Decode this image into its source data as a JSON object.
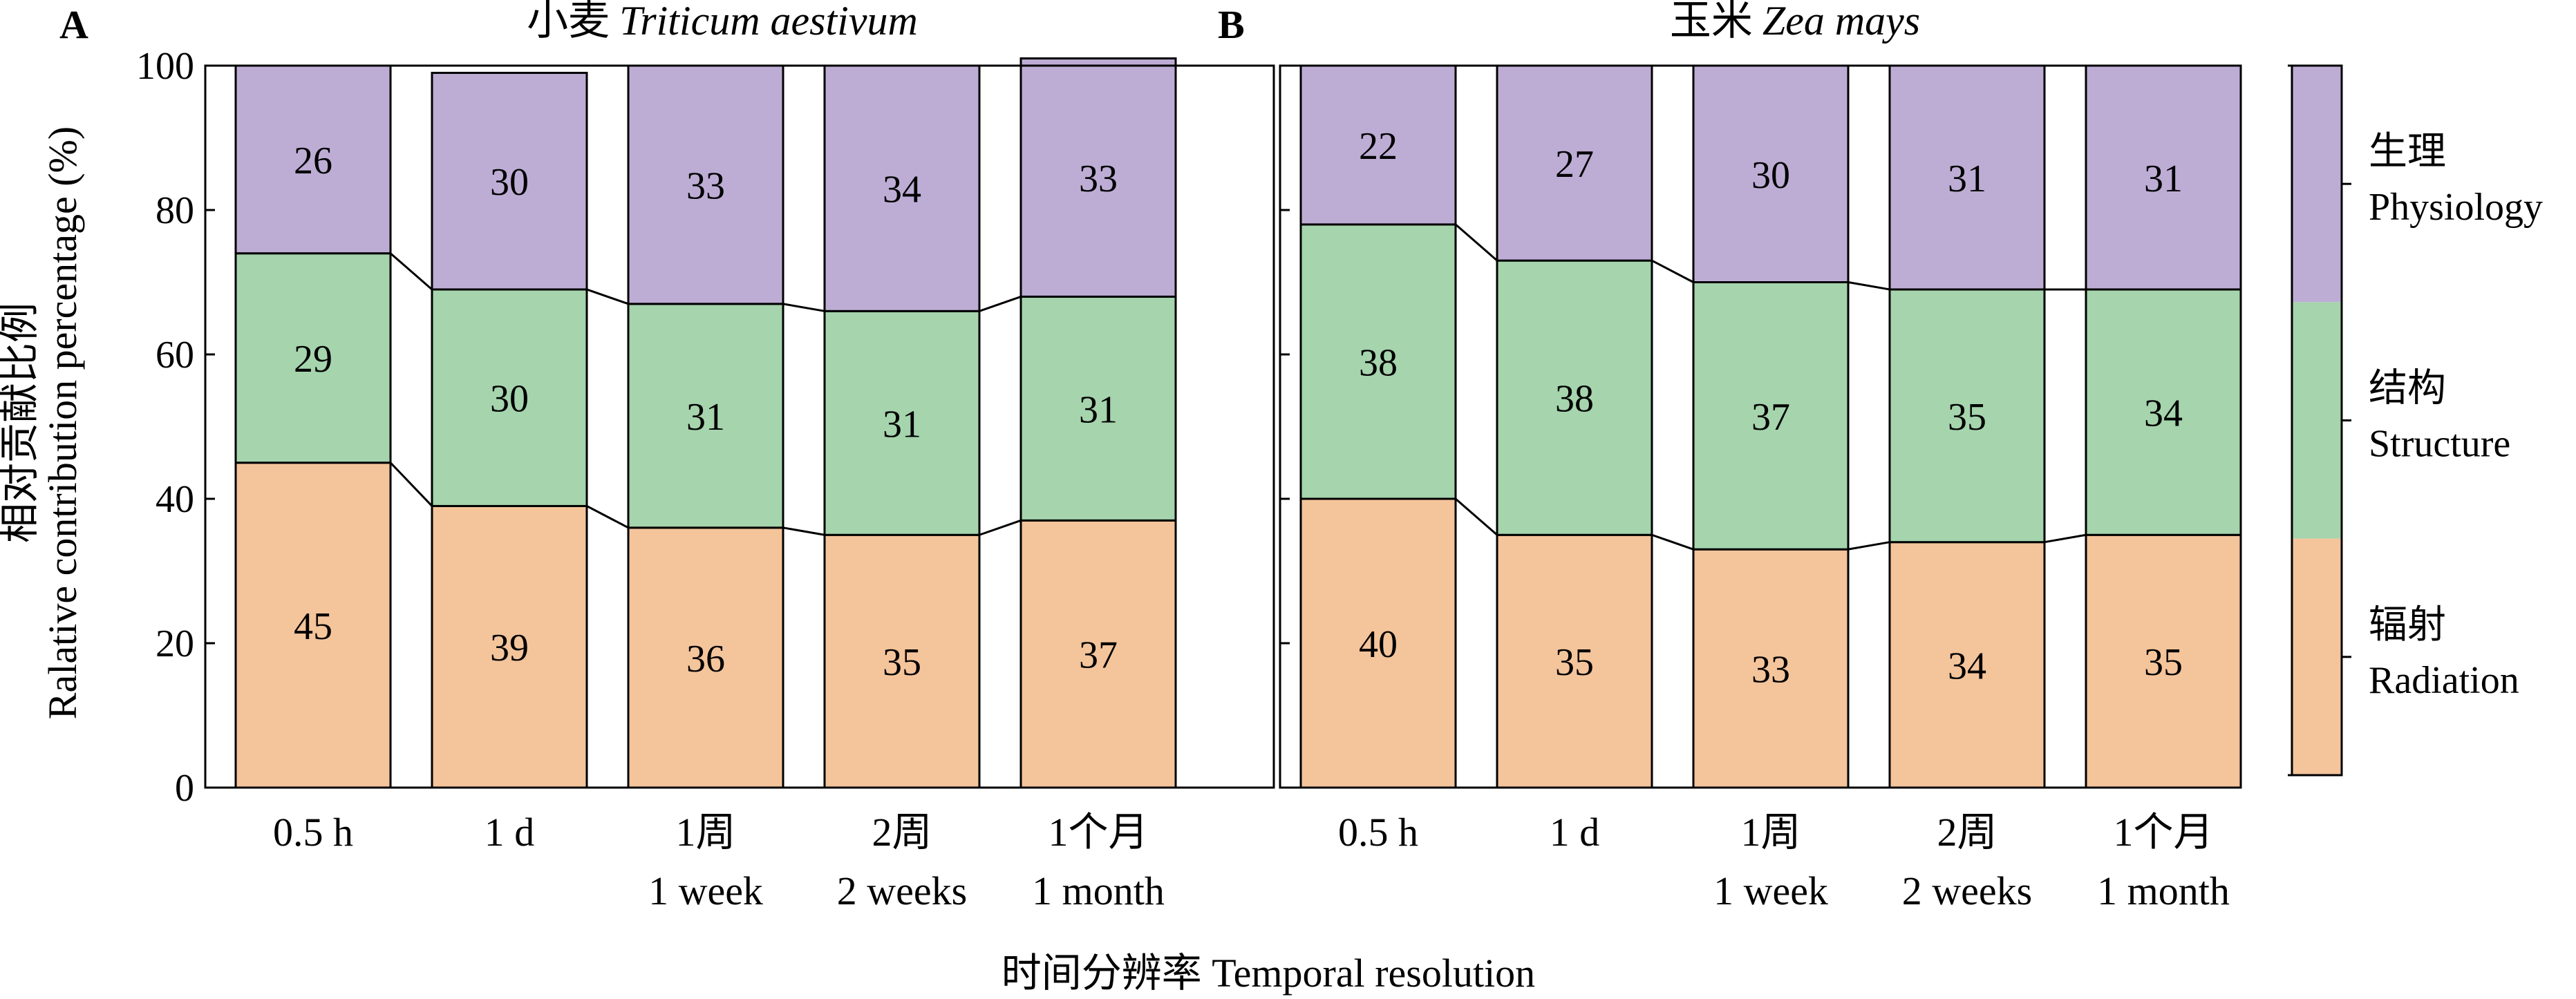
{
  "colors": {
    "Radiation": "#f4c49b",
    "Structure": "#a5d4ad",
    "Physiology": "#bdadd5",
    "stroke": "#000000"
  },
  "chart_data": {
    "type": "bar",
    "stacked": true,
    "ylabel_line1": "相对贡献比例",
    "ylabel_line2": "Ralative contribution percentage (%)",
    "xlabel": "时间分辨率 Temporal resolution",
    "ylim": [
      0,
      100
    ],
    "yticks": [
      "0",
      "20",
      "40",
      "60",
      "80",
      "100"
    ],
    "categories": [
      [
        "0.5 h"
      ],
      [
        "1 d"
      ],
      [
        "1周",
        "1 week"
      ],
      [
        "2周",
        "2 weeks"
      ],
      [
        "1个月",
        "1 month"
      ]
    ],
    "legend": [
      {
        "key": "Physiology",
        "zh": "生理",
        "en": "Physiology"
      },
      {
        "key": "Structure",
        "zh": "结构",
        "en": "Structure"
      },
      {
        "key": "Radiation",
        "zh": "辐射",
        "en": "Radiation"
      }
    ],
    "legend_position": "right",
    "panels": [
      {
        "letter": "A",
        "title_zh": "小麦",
        "title_latin": "Triticum aestivum",
        "series": [
          {
            "name": "Radiation",
            "values": [
              45,
              39,
              36,
              35,
              37
            ]
          },
          {
            "name": "Structure",
            "values": [
              29,
              30,
              31,
              31,
              31
            ]
          },
          {
            "name": "Physiology",
            "values": [
              26,
              30,
              33,
              34,
              33
            ]
          }
        ]
      },
      {
        "letter": "B",
        "title_zh": "玉米",
        "title_latin": "Zea mays",
        "series": [
          {
            "name": "Radiation",
            "values": [
              40,
              35,
              33,
              34,
              35
            ]
          },
          {
            "name": "Structure",
            "values": [
              38,
              38,
              37,
              35,
              34
            ]
          },
          {
            "name": "Physiology",
            "values": [
              22,
              27,
              30,
              31,
              31
            ]
          }
        ]
      }
    ]
  }
}
